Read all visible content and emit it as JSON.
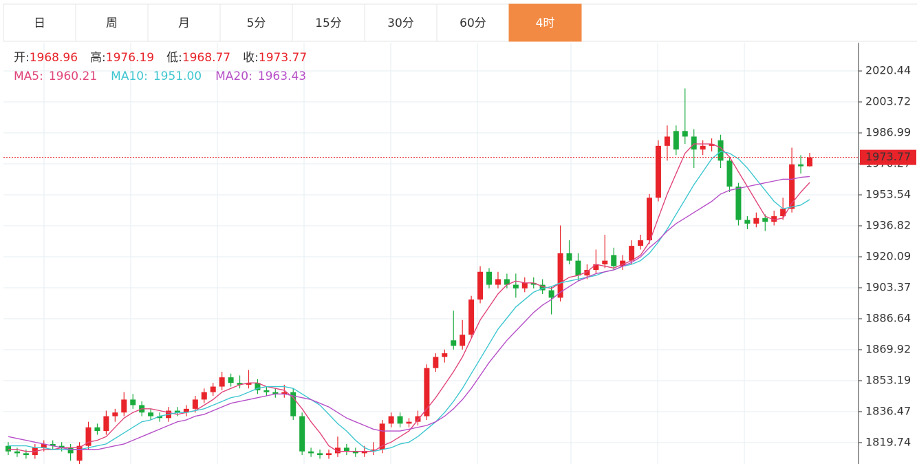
{
  "tabs": [
    "日",
    "周",
    "月",
    "5分",
    "15分",
    "30分",
    "60分",
    "4时"
  ],
  "active_tab": 7,
  "chart_data": {
    "type": "candlestick",
    "quote_labels": [
      "开:",
      "高:",
      "低:",
      "收:"
    ],
    "up_color": "#e8242a",
    "down_color": "#1aab3d",
    "ylim": [
      1808.2,
      2035.7
    ],
    "yticks": [
      2020.44,
      2003.72,
      1986.99,
      1970.27,
      1953.54,
      1936.82,
      1920.09,
      1903.37,
      1886.64,
      1869.92,
      1853.19,
      1836.47,
      1819.74
    ],
    "grid": true,
    "ohlc": [
      [
        1818,
        1820,
        1813,
        1815
      ],
      [
        1815,
        1817,
        1812,
        1814
      ],
      [
        1814,
        1816,
        1811,
        1813
      ],
      [
        1813,
        1819,
        1811,
        1817
      ],
      [
        1817,
        1821,
        1815,
        1819
      ],
      [
        1819,
        1821,
        1816,
        1818
      ],
      [
        1818,
        1820,
        1815,
        1817
      ],
      [
        1817,
        1819,
        1810,
        1814
      ],
      [
        1810,
        1820,
        1808,
        1818
      ],
      [
        1818,
        1831,
        1816,
        1828
      ],
      [
        1828,
        1830,
        1824,
        1826
      ],
      [
        1826,
        1837,
        1824,
        1834
      ],
      [
        1834,
        1838,
        1831,
        1836
      ],
      [
        1836,
        1847,
        1834,
        1843
      ],
      [
        1843,
        1846,
        1838,
        1840
      ],
      [
        1840,
        1842,
        1834,
        1836
      ],
      [
        1836,
        1838,
        1832,
        1834
      ],
      [
        1834,
        1836,
        1831,
        1833
      ],
      [
        1833,
        1839,
        1831,
        1837
      ],
      [
        1837,
        1839,
        1834,
        1836
      ],
      [
        1836,
        1840,
        1834,
        1838
      ],
      [
        1838,
        1845,
        1836,
        1843
      ],
      [
        1843,
        1849,
        1841,
        1847
      ],
      [
        1847,
        1852,
        1845,
        1850
      ],
      [
        1850,
        1858,
        1848,
        1855
      ],
      [
        1855,
        1857,
        1850,
        1852
      ],
      [
        1852,
        1856,
        1849,
        1851
      ],
      [
        1851,
        1859,
        1849,
        1852
      ],
      [
        1852,
        1854,
        1846,
        1848
      ],
      [
        1848,
        1850,
        1845,
        1847
      ],
      [
        1847,
        1849,
        1844,
        1846
      ],
      [
        1846,
        1851,
        1844,
        1847
      ],
      [
        1847,
        1849,
        1832,
        1834
      ],
      [
        1834,
        1836,
        1813,
        1815
      ],
      [
        1815,
        1817,
        1812,
        1814
      ],
      [
        1814,
        1816,
        1811,
        1813
      ],
      [
        1813,
        1816,
        1811,
        1814
      ],
      [
        1814,
        1823,
        1812,
        1817
      ],
      [
        1817,
        1819,
        1813,
        1815
      ],
      [
        1815,
        1817,
        1812,
        1814
      ],
      [
        1814,
        1818,
        1812,
        1815
      ],
      [
        1815,
        1820,
        1813,
        1816
      ],
      [
        1816,
        1832,
        1814,
        1830
      ],
      [
        1830,
        1836,
        1828,
        1834
      ],
      [
        1834,
        1836,
        1828,
        1830
      ],
      [
        1830,
        1833,
        1828,
        1831
      ],
      [
        1831,
        1837,
        1829,
        1834
      ],
      [
        1834,
        1862,
        1832,
        1860
      ],
      [
        1860,
        1868,
        1858,
        1866
      ],
      [
        1866,
        1870,
        1863,
        1868
      ],
      [
        1875,
        1891,
        1870,
        1872
      ],
      [
        1872,
        1886,
        1870,
        1878
      ],
      [
        1878,
        1899,
        1876,
        1897
      ],
      [
        1897,
        1915,
        1895,
        1912
      ],
      [
        1912,
        1914,
        1903,
        1905
      ],
      [
        1905,
        1912,
        1903,
        1908
      ],
      [
        1908,
        1911,
        1903,
        1905
      ],
      [
        1905,
        1911,
        1898,
        1903
      ],
      [
        1903,
        1909,
        1901,
        1906
      ],
      [
        1906,
        1909,
        1903,
        1905
      ],
      [
        1905,
        1908,
        1900,
        1902
      ],
      [
        1902,
        1904,
        1889,
        1898
      ],
      [
        1898,
        1937,
        1896,
        1922
      ],
      [
        1922,
        1929,
        1916,
        1918
      ],
      [
        1918,
        1922,
        1907,
        1910
      ],
      [
        1910,
        1916,
        1908,
        1913
      ],
      [
        1913,
        1924,
        1911,
        1916
      ],
      [
        1916,
        1932,
        1914,
        1918
      ],
      [
        1921,
        1925,
        1913,
        1915
      ],
      [
        1915,
        1921,
        1913,
        1918
      ],
      [
        1918,
        1929,
        1916,
        1926
      ],
      [
        1926,
        1932,
        1924,
        1929
      ],
      [
        1929,
        1954,
        1927,
        1952
      ],
      [
        1952,
        1983,
        1950,
        1980
      ],
      [
        1980,
        1991,
        1972,
        1985
      ],
      [
        1988,
        1991,
        1975,
        1978
      ],
      [
        1988,
        2011,
        1981,
        1985
      ],
      [
        1985,
        1989,
        1968,
        1978
      ],
      [
        1978,
        1983,
        1975,
        1980
      ],
      [
        1980,
        1984,
        1977,
        1981
      ],
      [
        1983,
        1986,
        1968,
        1972
      ],
      [
        1972,
        1974,
        1955,
        1958
      ],
      [
        1958,
        1960,
        1937,
        1940
      ],
      [
        1940,
        1942,
        1935,
        1938
      ],
      [
        1938,
        1944,
        1936,
        1941
      ],
      [
        1941,
        1943,
        1934,
        1939
      ],
      [
        1939,
        1945,
        1937,
        1942
      ],
      [
        1942,
        1952,
        1940,
        1946
      ],
      [
        1946,
        1979,
        1944,
        1970
      ],
      [
        1970,
        1975,
        1965,
        1968.96
      ],
      [
        1968.96,
        1976.19,
        1968.77,
        1973.77
      ]
    ],
    "series": [
      {
        "name": "MA5:",
        "color": "#e0457b",
        "last_label": "1960.21",
        "values": [
          1816,
          1816,
          1815,
          1815,
          1816,
          1816,
          1817,
          1817,
          1817,
          1820,
          1821,
          1823,
          1828,
          1833,
          1836,
          1838,
          1838,
          1837,
          1836,
          1835,
          1836,
          1837,
          1840,
          1843,
          1847,
          1849,
          1851,
          1852,
          1852,
          1850,
          1849,
          1848,
          1844,
          1838,
          1831,
          1825,
          1818,
          1815,
          1815,
          1815,
          1815,
          1815,
          1818,
          1820,
          1823,
          1826,
          1832,
          1838,
          1844,
          1851,
          1858,
          1866,
          1876,
          1886,
          1893,
          1900,
          1905,
          1907,
          1906,
          1906,
          1904,
          1903,
          1906,
          1909,
          1910,
          1912,
          1916,
          1915,
          1914,
          1916,
          1918,
          1921,
          1928,
          1941,
          1954,
          1965,
          1976,
          1981,
          1981,
          1981,
          1979,
          1974,
          1966,
          1958,
          1950,
          1942,
          1940,
          1941,
          1949,
          1955,
          1960.21
        ]
      },
      {
        "name": "MA10:",
        "color": "#3ec6d0",
        "last_label": "1951.00",
        "values": [
          1818,
          1818,
          1818,
          1817,
          1817,
          1816,
          1816,
          1816,
          1816,
          1817,
          1818,
          1819,
          1822,
          1825,
          1828,
          1831,
          1832,
          1834,
          1835,
          1836,
          1836,
          1837,
          1838,
          1840,
          1842,
          1844,
          1845,
          1847,
          1849,
          1850,
          1850,
          1850,
          1849,
          1846,
          1843,
          1840,
          1835,
          1830,
          1826,
          1821,
          1817,
          1815,
          1816,
          1817,
          1819,
          1820,
          1823,
          1827,
          1831,
          1836,
          1842,
          1849,
          1857,
          1865,
          1873,
          1881,
          1887,
          1893,
          1897,
          1901,
          1903,
          1904,
          1906,
          1907,
          1908,
          1909,
          1910,
          1912,
          1913,
          1915,
          1916,
          1918,
          1922,
          1928,
          1935,
          1943,
          1951,
          1959,
          1966,
          1973,
          1977,
          1976,
          1973,
          1968,
          1962,
          1956,
          1950,
          1946,
          1947,
          1948,
          1951
        ]
      },
      {
        "name": "MA20:",
        "color": "#b64fc8",
        "last_label": "1963.43",
        "values": [
          1823,
          1822,
          1821,
          1820,
          1819,
          1818,
          1817,
          1816,
          1816,
          1816,
          1816,
          1817,
          1818,
          1819,
          1821,
          1823,
          1825,
          1827,
          1829,
          1831,
          1832,
          1834,
          1835,
          1837,
          1839,
          1841,
          1842,
          1843,
          1844,
          1845,
          1846,
          1846,
          1845,
          1844,
          1843,
          1841,
          1839,
          1836,
          1833,
          1831,
          1829,
          1827,
          1826,
          1826,
          1826,
          1827,
          1828,
          1829,
          1831,
          1834,
          1838,
          1843,
          1849,
          1856,
          1863,
          1869,
          1875,
          1880,
          1885,
          1890,
          1894,
          1897,
          1901,
          1904,
          1907,
          1909,
          1911,
          1912,
          1913,
          1915,
          1917,
          1920,
          1925,
          1929,
          1934,
          1938,
          1941,
          1944,
          1947,
          1950,
          1954,
          1956,
          1957,
          1958,
          1959,
          1960,
          1961,
          1962,
          1962,
          1963,
          1963.43
        ]
      }
    ]
  }
}
